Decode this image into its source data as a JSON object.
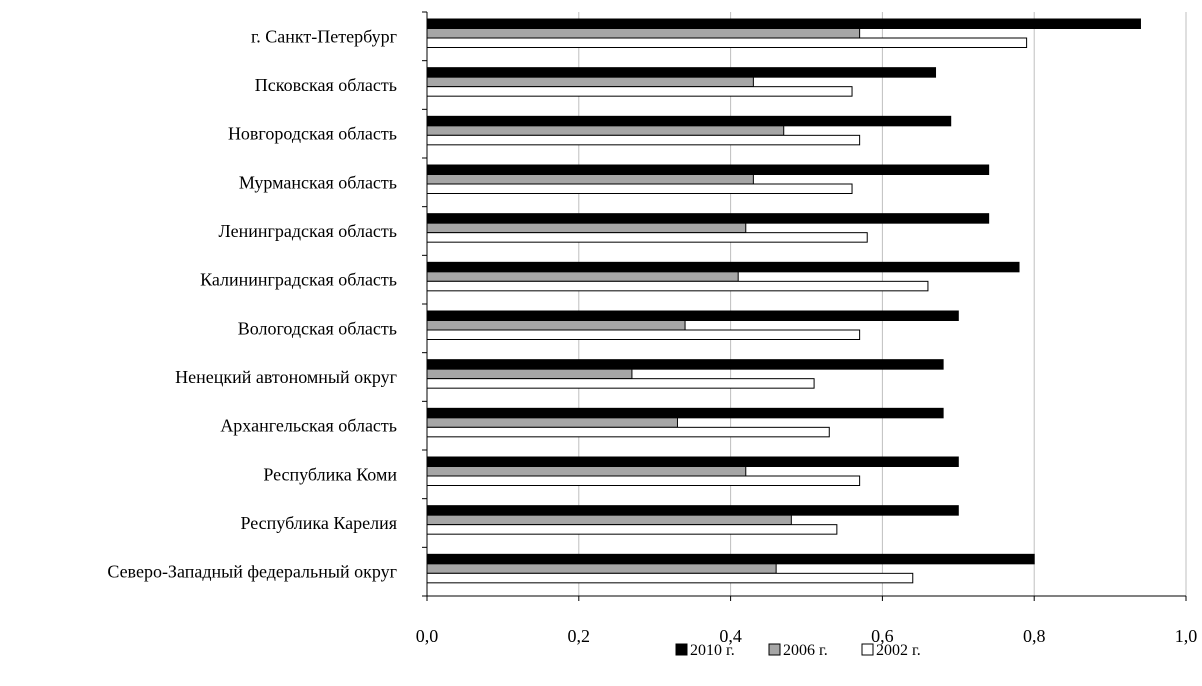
{
  "chart_data": {
    "type": "bar",
    "orientation": "horizontal",
    "categories": [
      "г. Санкт-Петербург",
      "Псковская область",
      "Новгородская область",
      "Мурманская область",
      "Ленинградская область",
      "Калининградская область",
      "Вологодская область",
      "Ненецкий автономный округ",
      "Архангельская область",
      "Республика Коми",
      "Республика Карелия",
      "Северо-Западный федеральный округ"
    ],
    "series": [
      {
        "name": "2010 г.",
        "color": "#000000",
        "values": [
          0.94,
          0.67,
          0.69,
          0.74,
          0.74,
          0.78,
          0.7,
          0.68,
          0.68,
          0.7,
          0.7,
          0.8
        ]
      },
      {
        "name": "2006 г.",
        "color": "#a6a6a6",
        "values": [
          0.57,
          0.43,
          0.47,
          0.43,
          0.42,
          0.41,
          0.34,
          0.27,
          0.33,
          0.42,
          0.48,
          0.46
        ]
      },
      {
        "name": "2002 г.",
        "color": "#ffffff",
        "values": [
          0.79,
          0.56,
          0.57,
          0.56,
          0.58,
          0.66,
          0.57,
          0.51,
          0.53,
          0.57,
          0.54,
          0.64
        ]
      }
    ],
    "xlim": [
      0,
      1.0
    ],
    "xticks": [
      "0,0",
      "0,2",
      "0,4",
      "0,6",
      "0,8",
      "1,0"
    ],
    "grid": "vertical",
    "legend_position": "bottom",
    "title": "",
    "xlabel": "",
    "ylabel": ""
  }
}
